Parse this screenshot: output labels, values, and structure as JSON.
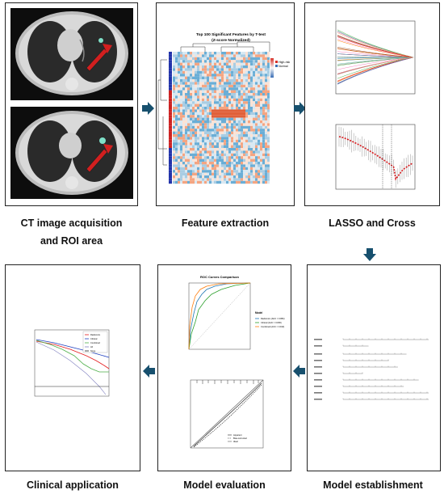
{
  "captions": {
    "ct_line1": "CT image acquisition",
    "ct_line2": "and ROI area",
    "feature": "Feature extraction",
    "lasso": "LASSO and Cross",
    "establish": "Model establishment",
    "evaluation": "Model evaluation",
    "clinical": "Clinical application"
  },
  "heatmap": {
    "title_line1": "Top 100 Significant Features by T-test",
    "title_line2": "(Z-score Normalized)",
    "legend_high": "High-risk",
    "legend_normal": "Normal"
  },
  "roc": {
    "title": "ROC Curves Comparison",
    "legend_title": "Model",
    "legend_items": [
      "Radiomics (AUC = 0.884)",
      "Clinical (AUC = 0.836)",
      "Combined (AUC = 0.913)"
    ]
  },
  "calibration": {
    "legend_items": [
      "Apparent",
      "Bias-corrected",
      "Ideal"
    ]
  },
  "dca": {
    "legend_items": [
      "Radiomics",
      "Clinical",
      "Combined",
      "All",
      "None"
    ]
  },
  "colors": {
    "arrow": "#17506e",
    "heat_red": "#d73027",
    "heat_blue": "#3b6fb6",
    "lasso_red": "#d7191c"
  }
}
